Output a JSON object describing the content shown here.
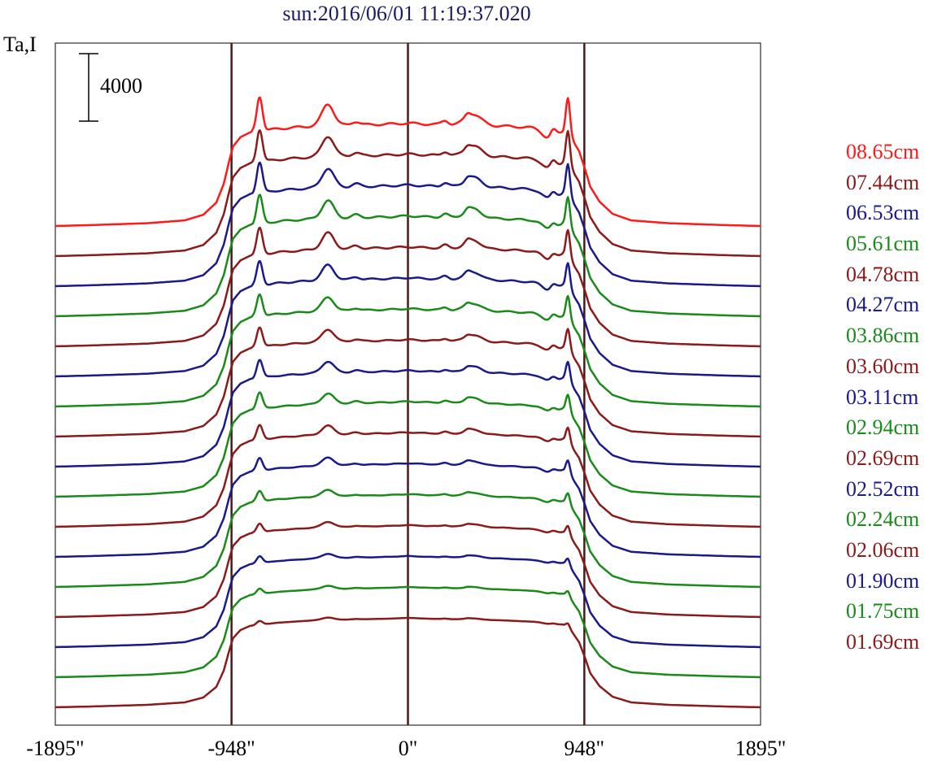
{
  "chart_data": {
    "type": "line",
    "title": "sun:2016/06/01 11:19:37.020",
    "ylabel": "Ta,I",
    "scale_bar_label": "4000",
    "xticks": [
      "-1895\"",
      "-948\"",
      "0\"",
      "948\"",
      "1895\""
    ],
    "xlim": [
      -1895,
      1895
    ],
    "vertical_lines": [
      -948,
      0,
      948
    ],
    "series": [
      {
        "name": "08.65cm",
        "color": "#ff1a1a"
      },
      {
        "name": "07.44cm",
        "color": "#8b1a1a"
      },
      {
        "name": "06.53cm",
        "color": "#1a1a8b"
      },
      {
        "name": "05.61cm",
        "color": "#1a8b1a"
      },
      {
        "name": "04.78cm",
        "color": "#8b1a1a"
      },
      {
        "name": "04.27cm",
        "color": "#1a1a8b"
      },
      {
        "name": "03.86cm",
        "color": "#1a8b1a"
      },
      {
        "name": "03.60cm",
        "color": "#8b1a1a"
      },
      {
        "name": "03.11cm",
        "color": "#1a1a8b"
      },
      {
        "name": "02.94cm",
        "color": "#1a8b1a"
      },
      {
        "name": "02.69cm",
        "color": "#8b1a1a"
      },
      {
        "name": "02.52cm",
        "color": "#1a1a8b"
      },
      {
        "name": "02.24cm",
        "color": "#1a8b1a"
      },
      {
        "name": "02.06cm",
        "color": "#8b1a1a"
      },
      {
        "name": "01.90cm",
        "color": "#1a1a8b"
      },
      {
        "name": "01.75cm",
        "color": "#1a8b1a"
      },
      {
        "name": "01.69cm",
        "color": "#8b1a1a"
      }
    ],
    "profile_points": [
      [
        -1895,
        0.0
      ],
      [
        -1700,
        0.01
      ],
      [
        -1400,
        0.03
      ],
      [
        -1200,
        0.06
      ],
      [
        -1100,
        0.12
      ],
      [
        -1030,
        0.25
      ],
      [
        -990,
        0.45
      ],
      [
        -960,
        0.7
      ],
      [
        -940,
        0.85
      ],
      [
        -900,
        0.95
      ],
      [
        -850,
        1.0
      ],
      [
        -700,
        1.04
      ],
      [
        -500,
        1.07
      ],
      [
        -300,
        1.08
      ],
      [
        -100,
        1.09
      ],
      [
        0,
        1.1
      ],
      [
        100,
        1.09
      ],
      [
        300,
        1.08
      ],
      [
        500,
        1.07
      ],
      [
        700,
        1.05
      ],
      [
        830,
        1.02
      ],
      [
        860,
        0.98
      ],
      [
        890,
        0.9
      ],
      [
        920,
        0.8
      ],
      [
        950,
        0.62
      ],
      [
        980,
        0.42
      ],
      [
        1030,
        0.26
      ],
      [
        1100,
        0.13
      ],
      [
        1200,
        0.06
      ],
      [
        1400,
        0.03
      ],
      [
        1700,
        0.01
      ],
      [
        1895,
        0.0
      ]
    ],
    "features": [
      {
        "x": -797,
        "amp": 1.0,
        "width": 22
      },
      {
        "x": -430,
        "amp": 0.62,
        "width": 45
      },
      {
        "x": -280,
        "amp": 0.1,
        "width": 30
      },
      {
        "x": 200,
        "amp": 0.12,
        "width": 25
      },
      {
        "x": 320,
        "amp": 0.1,
        "width": 20
      },
      {
        "x": 350,
        "amp": 0.32,
        "width": 60
      },
      {
        "x": 780,
        "amp": 0.22,
        "width": 22
      },
      {
        "x": 860,
        "amp": 1.05,
        "width": 16
      },
      {
        "x": 760,
        "amp": -0.28,
        "width": 50
      }
    ]
  }
}
